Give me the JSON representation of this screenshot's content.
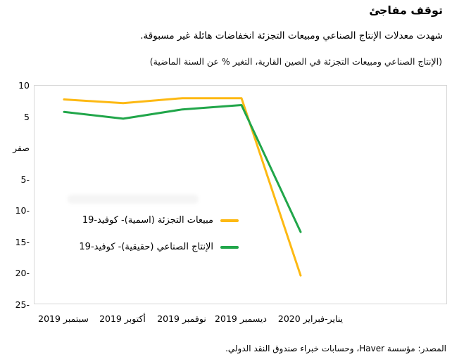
{
  "header": {
    "title": "توقف مفاجئ",
    "subtitle": "شهدت معدلات الإنتاج الصناعي ومبيعات التجزئة انخفاضات هائلة غير مسبوقة.",
    "note": "(الإنتاج الصناعي ومبيعات التجزئة في الصين القارية، التغير % عن السنة الماضية)"
  },
  "chart_data": {
    "type": "line",
    "categories": [
      "سبتمبر 2019",
      "أكتوبر 2019",
      "نوفمبر 2019",
      "ديسمبر 2019",
      "يناير-فبراير 2020"
    ],
    "series": [
      {
        "id": "retail-sales-nominal",
        "name": "مبيعات التجزئة (اسمية)- كوفيد-19",
        "color": "#FDB913",
        "values": [
          7.8,
          7.2,
          8.0,
          8.0,
          -20.5
        ]
      },
      {
        "id": "industrial-production-real",
        "name": "الإنتاج الصناعي (حقيقية)- كوفيد-19",
        "color": "#21A64A",
        "values": [
          5.8,
          4.7,
          6.2,
          6.9,
          -13.5
        ]
      }
    ],
    "ylim": [
      -25,
      10
    ],
    "ytick_step": 5,
    "ytick_labels": [
      "10",
      "5",
      "صفر",
      "-5",
      "-10",
      "-15",
      "-20",
      "-25"
    ],
    "zero_label_word": "صفر",
    "grid": false,
    "legend_position": "inside-left-middle",
    "plot_border_color": "#d7d7d7"
  },
  "source": "المصدر: مؤسسة Haver، وحسابات خبراء صندوق النقد الدولي."
}
